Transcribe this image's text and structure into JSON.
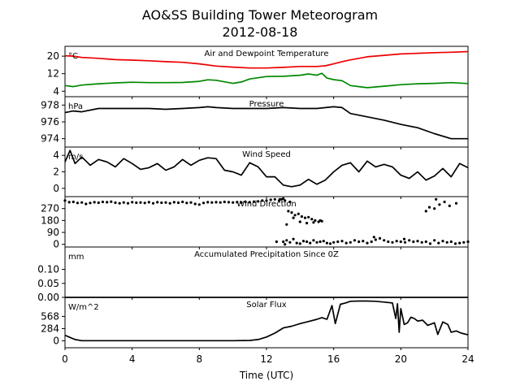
{
  "chart_data": {
    "type": "line",
    "title": "AO&SS Building Tower Meteorogram",
    "subtitle": "2012-08-18",
    "xlabel": "Time (UTC)",
    "xlim": [
      0,
      24
    ],
    "xticks": [
      0,
      4,
      8,
      12,
      16,
      20,
      24
    ],
    "x_tick_labels": [
      "0",
      "4",
      "8",
      "12",
      "16",
      "20",
      "24"
    ],
    "panels": [
      {
        "title": "Air and Dewpoint Temperature",
        "unit": "°C",
        "ylim": [
          1.5,
          24.5
        ],
        "yticks": [
          4,
          12,
          20
        ],
        "y_tick_labels": [
          "4",
          "12",
          "20"
        ],
        "series": [
          {
            "color": "#ee0000",
            "style": "line",
            "x": [
              0,
              0.5,
              1,
              2,
              3,
              4,
              5,
              6,
              7,
              8,
              9,
              10,
              11,
              12,
              13,
              14,
              15,
              15.5,
              16,
              16.5,
              17,
              18,
              19,
              20,
              21,
              22,
              23,
              24
            ],
            "y": [
              20.2,
              20.0,
              19.4,
              19.0,
              18.4,
              18.2,
              17.9,
              17.5,
              17.2,
              16.5,
              15.5,
              15.0,
              14.6,
              14.6,
              14.9,
              15.3,
              15.3,
              15.6,
              16.5,
              17.5,
              18.3,
              19.7,
              20.4,
              21.0,
              21.3,
              21.6,
              21.8,
              22.1
            ]
          },
          {
            "color": "#008800",
            "style": "line",
            "x": [
              0,
              0.5,
              1,
              2,
              3,
              4,
              5,
              6,
              7,
              8,
              8.5,
              9,
              10,
              10.5,
              11,
              12,
              13,
              14,
              14.5,
              15,
              15.3,
              15.6,
              16,
              16.5,
              17,
              17.5,
              18,
              19,
              20,
              21,
              22,
              23,
              24
            ],
            "y": [
              6.6,
              6.1,
              6.8,
              7.4,
              7.8,
              8.1,
              7.9,
              7.9,
              8.0,
              8.5,
              9.2,
              9.0,
              7.6,
              8.2,
              9.6,
              10.7,
              10.8,
              11.3,
              11.9,
              11.3,
              12.2,
              10.0,
              9.3,
              8.8,
              6.6,
              6.1,
              5.6,
              6.3,
              7.0,
              7.4,
              7.6,
              7.9,
              7.5
            ]
          }
        ]
      },
      {
        "title": "Pressure",
        "unit": "hPa",
        "ylim": [
          973.0,
          979.0
        ],
        "yticks": [
          974,
          976,
          978
        ],
        "y_tick_labels": [
          "974",
          "976",
          "978"
        ],
        "series": [
          {
            "color": "#000000",
            "style": "line",
            "x": [
              0,
              0.5,
              1,
              2,
              3,
              4,
              5,
              6,
              7,
              8,
              8.5,
              9,
              10,
              11,
              12,
              13,
              14,
              15,
              16,
              16.5,
              17,
              18,
              19,
              20,
              21,
              22,
              23,
              24
            ],
            "y": [
              977.1,
              977.3,
              977.2,
              977.6,
              977.6,
              977.6,
              977.6,
              977.5,
              977.6,
              977.7,
              977.8,
              977.7,
              977.6,
              977.6,
              977.6,
              977.7,
              977.6,
              977.6,
              977.8,
              977.7,
              977.0,
              976.6,
              976.2,
              975.7,
              975.3,
              974.6,
              974.0,
              974.0
            ]
          }
        ]
      },
      {
        "title": "Wind Speed",
        "unit": "m/s",
        "ylim": [
          -1.0,
          5.0
        ],
        "yticks": [
          0,
          2,
          4
        ],
        "y_tick_labels": [
          "0",
          "2",
          "4"
        ],
        "series": [
          {
            "color": "#000000",
            "style": "line",
            "x": [
              0,
              0.3,
              0.6,
              1,
              1.5,
              2,
              2.5,
              3,
              3.5,
              4,
              4.5,
              5,
              5.5,
              6,
              6.5,
              7,
              7.5,
              8,
              8.5,
              9,
              9.5,
              10,
              10.5,
              11,
              11.5,
              12,
              12.5,
              13,
              13.5,
              14,
              14.5,
              15,
              15.5,
              16,
              16.5,
              17,
              17.5,
              18,
              18.5,
              19,
              19.5,
              20,
              20.5,
              21,
              21.5,
              22,
              22.5,
              23,
              23.5,
              24
            ],
            "y": [
              3.2,
              4.6,
              3.0,
              3.8,
              2.8,
              3.5,
              3.2,
              2.6,
              3.6,
              3.0,
              2.3,
              2.5,
              3.0,
              2.2,
              2.6,
              3.5,
              2.8,
              3.4,
              3.7,
              3.6,
              2.2,
              2.0,
              1.6,
              3.1,
              2.6,
              1.4,
              1.4,
              0.4,
              0.2,
              0.4,
              1.1,
              0.5,
              1.0,
              2.0,
              2.8,
              3.1,
              2.0,
              3.3,
              2.6,
              2.9,
              2.6,
              1.6,
              1.2,
              2.0,
              1.0,
              1.5,
              2.4,
              1.4,
              3.0,
              2.5
            ]
          }
        ]
      },
      {
        "title": "Wind Direction",
        "unit": "",
        "ylim": [
          -20,
          360
        ],
        "yticks": [
          0,
          90,
          180,
          270
        ],
        "y_tick_labels": [
          "0",
          "90",
          "180",
          "270"
        ],
        "series": [
          {
            "color": "#000000",
            "style": "points",
            "x": [
              0,
              0.25,
              0.5,
              0.75,
              1,
              1.25,
              1.5,
              1.75,
              2,
              2.25,
              2.5,
              2.75,
              3,
              3.25,
              3.5,
              3.75,
              4,
              4.25,
              4.5,
              4.75,
              5,
              5.25,
              5.5,
              5.75,
              6,
              6.25,
              6.5,
              6.75,
              7,
              7.25,
              7.5,
              7.75,
              8,
              8.25,
              8.5,
              8.75,
              9,
              9.25,
              9.5,
              9.75,
              10,
              10.25,
              10.5,
              10.75,
              11,
              11.25,
              11.5,
              11.75,
              12,
              12.25,
              12.5,
              12.75,
              13,
              13.2,
              13.4,
              13.6,
              13.8,
              14,
              14.2,
              14.4,
              14.6,
              14.8,
              15,
              15.2,
              15.4,
              15.6,
              15.8,
              16,
              16.25,
              16.5,
              16.75,
              17,
              17.25,
              17.5,
              17.75,
              18,
              18.25,
              18.5,
              18.75,
              19,
              19.25,
              19.5,
              19.75,
              20,
              20.25,
              20.5,
              20.75,
              21,
              21.25,
              21.5,
              21.75,
              22,
              22.25,
              22.5,
              22.75,
              23,
              23.25,
              23.5,
              23.75,
              24,
              12.9,
              13.1,
              13.3,
              13.5,
              13.7,
              13.9,
              14.1,
              14.3,
              14.5,
              14.7,
              14.9,
              15.1,
              15.3,
              13.2,
              13.6,
              14.0,
              14.4,
              14.8,
              15.2,
              13.0,
              13.4,
              21.7,
              22.0,
              22.3,
              22.6,
              22.9,
              23.3,
              21.5,
              22.1,
              20.2,
              18.4,
              12.6,
              13.1,
              12.8
            ],
            "y": [
              330,
              318,
              320,
              312,
              316,
              305,
              312,
              318,
              314,
              320,
              318,
              322,
              314,
              310,
              316,
              310,
              318,
              314,
              316,
              312,
              318,
              310,
              318,
              314,
              316,
              310,
              318,
              314,
              320,
              312,
              316,
              305,
              300,
              312,
              318,
              316,
              318,
              316,
              320,
              318,
              316,
              318,
              316,
              320,
              318,
              322,
              324,
              330,
              330,
              336,
              340,
              330,
              20,
              30,
              15,
              40,
              10,
              5,
              25,
              20,
              10,
              30,
              15,
              20,
              25,
              10,
              5,
              15,
              20,
              25,
              10,
              15,
              30,
              20,
              25,
              10,
              20,
              35,
              45,
              30,
              20,
              15,
              25,
              20,
              15,
              30,
              20,
              25,
              15,
              20,
              5,
              30,
              10,
              25,
              15,
              20,
              5,
              10,
              15,
              20,
              340,
              330,
              250,
              240,
              220,
              230,
              210,
              200,
              205,
              190,
              180,
              170,
              175,
              150,
              200,
              170,
              160,
              165,
              180,
              345,
              320,
              280,
              270,
              300,
              320,
              290,
              310,
              250,
              340,
              40,
              55,
              20,
              0,
              340
            ]
          }
        ]
      },
      {
        "title": "Accumulated Precipitation Since 0Z",
        "unit": "mm",
        "ylim": [
          0.0,
          0.18
        ],
        "yticks": [
          0.0,
          0.05,
          0.1
        ],
        "y_tick_labels": [
          "0.00",
          "0.05",
          "0.10"
        ],
        "series": [
          {
            "color": "#000000",
            "style": "line",
            "x": [
              0,
              24
            ],
            "y": [
              0.0,
              0.0
            ]
          }
        ]
      },
      {
        "title": "Solar Flux",
        "unit": "W/m^2",
        "ylim": [
          -160,
          1010
        ],
        "yticks": [
          0,
          284,
          568
        ],
        "y_tick_labels": [
          "0",
          "284",
          "568"
        ],
        "series": [
          {
            "color": "#000000",
            "style": "line",
            "x": [
              0,
              0.3,
              0.6,
              1,
              2,
              3,
              4,
              5,
              6,
              7,
              8,
              9,
              10,
              11,
              11.5,
              12,
              12.5,
              13,
              13.5,
              14,
              14.5,
              15,
              15.3,
              15.6,
              15.9,
              16.1,
              16.4,
              16.7,
              17,
              17.5,
              18,
              18.5,
              19,
              19.5,
              19.7,
              19.8,
              19.9,
              20.0,
              20.2,
              20.4,
              20.6,
              20.8,
              21.0,
              21.3,
              21.6,
              22.0,
              22.2,
              22.5,
              22.8,
              23.0,
              23.3,
              23.6,
              24
            ],
            "y": [
              130,
              80,
              30,
              5,
              5,
              5,
              5,
              5,
              5,
              5,
              5,
              5,
              5,
              10,
              30,
              90,
              180,
              300,
              340,
              400,
              450,
              500,
              540,
              500,
              820,
              400,
              850,
              880,
              920,
              925,
              925,
              920,
              900,
              880,
              520,
              860,
              200,
              750,
              380,
              420,
              550,
              520,
              460,
              480,
              360,
              420,
              150,
              440,
              380,
              200,
              230,
              180,
              140
            ]
          }
        ]
      }
    ]
  }
}
